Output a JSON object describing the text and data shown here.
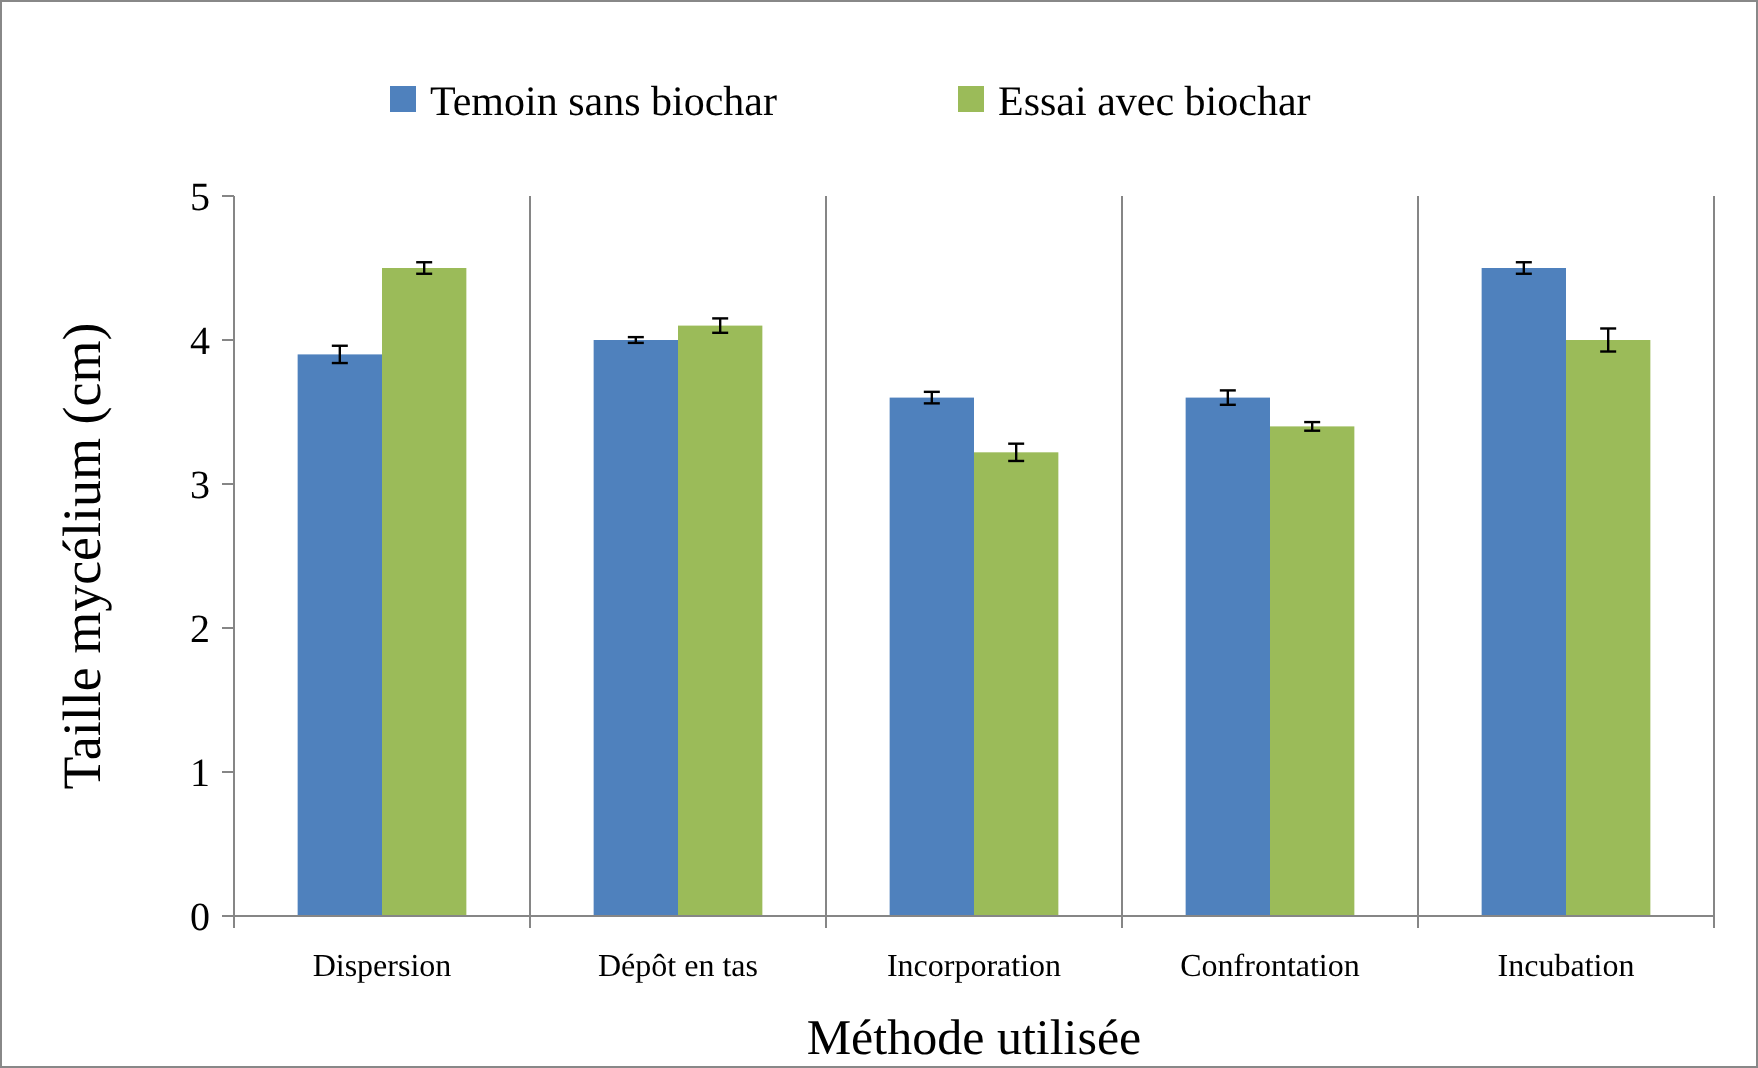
{
  "chart_data": {
    "type": "bar",
    "xlabel": "Méthode utilisée",
    "ylabel": "Taille mycélium (cm)",
    "categories": [
      "Dispersion",
      "Dépôt en tas",
      "Incorporation",
      "Confrontation",
      "Incubation"
    ],
    "series": [
      {
        "name": "Temoin sans biochar",
        "color": "#4f81bd",
        "values": [
          3.9,
          4.0,
          3.6,
          3.6,
          4.5
        ],
        "errors": [
          0.06,
          0.02,
          0.04,
          0.05,
          0.04
        ]
      },
      {
        "name": "Essai avec biochar",
        "color": "#9bbb59",
        "values": [
          4.5,
          4.1,
          3.22,
          3.4,
          4.0
        ],
        "errors": [
          0.04,
          0.05,
          0.06,
          0.03,
          0.08
        ]
      }
    ],
    "ylim": [
      0,
      5
    ],
    "yticks": [
      0,
      1,
      2,
      3,
      4,
      5
    ],
    "grid": "x",
    "legend": "top"
  }
}
